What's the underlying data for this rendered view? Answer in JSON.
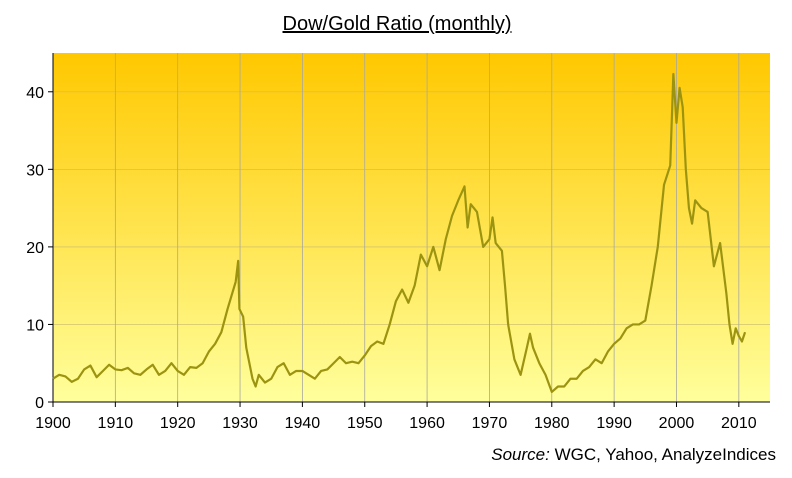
{
  "chart_data": {
    "type": "line",
    "title": "Dow/Gold Ratio (monthly)",
    "source_label": "Source:",
    "source": "WGC, Yahoo, AnalyzeIndices",
    "xlim": [
      1900,
      2015
    ],
    "ylim": [
      0,
      45
    ],
    "xticks": [
      1900,
      1910,
      1920,
      1930,
      1940,
      1950,
      1960,
      1970,
      1980,
      1990,
      2000,
      2010
    ],
    "yticks": [
      0,
      10,
      20,
      30,
      40
    ],
    "grid": true,
    "series": [
      {
        "name": "Dow/Gold Ratio",
        "color": "#9c9410",
        "x": [
          1900,
          1901,
          1902,
          1903,
          1904,
          1905,
          1906,
          1907,
          1908,
          1909,
          1910,
          1911,
          1912,
          1913,
          1914,
          1915,
          1916,
          1917,
          1918,
          1919,
          1920,
          1921,
          1922,
          1923,
          1924,
          1925,
          1926,
          1927,
          1928,
          1929.3,
          1929.7,
          1929.9,
          1930.5,
          1931,
          1932,
          1932.5,
          1933,
          1934,
          1935,
          1936,
          1937,
          1938,
          1939,
          1940,
          1941,
          1942,
          1943,
          1944,
          1945,
          1946,
          1947,
          1948,
          1949,
          1950,
          1951,
          1952,
          1953,
          1954,
          1955,
          1956,
          1957,
          1958,
          1959,
          1960,
          1961,
          1962,
          1963,
          1964,
          1965,
          1966,
          1966.5,
          1967,
          1968,
          1969,
          1970,
          1970.5,
          1971,
          1972,
          1972.5,
          1973,
          1974,
          1975,
          1976,
          1976.5,
          1977,
          1978,
          1979,
          1980,
          1981,
          1982,
          1983,
          1984,
          1985,
          1986,
          1987,
          1988,
          1989,
          1990,
          1991,
          1992,
          1993,
          1994,
          1995,
          1996,
          1997,
          1998,
          1999,
          1999.5,
          2000,
          2000.5,
          2001,
          2001.5,
          2002,
          2002.5,
          2003,
          2004,
          2005,
          2006,
          2006.5,
          2007,
          2008,
          2008.5,
          2009,
          2009.5,
          2010,
          2010.5,
          2011
        ],
        "values": [
          3.0,
          3.5,
          3.3,
          2.6,
          3.0,
          4.2,
          4.7,
          3.2,
          4.0,
          4.8,
          4.2,
          4.1,
          4.4,
          3.7,
          3.5,
          4.2,
          4.8,
          3.5,
          4.0,
          5.0,
          4.0,
          3.5,
          4.5,
          4.4,
          5.0,
          6.5,
          7.5,
          9.0,
          12.0,
          15.5,
          18.2,
          12.0,
          11.0,
          7,
          3,
          2.0,
          3.5,
          2.5,
          3.0,
          4.5,
          5.0,
          3.5,
          4.0,
          4.0,
          3.5,
          3.0,
          4.0,
          4.2,
          5.0,
          5.8,
          5.0,
          5.2,
          5.0,
          6.0,
          7.2,
          7.8,
          7.5,
          10.0,
          13.0,
          14.5,
          12.8,
          15.0,
          19.0,
          17.5,
          20.0,
          17.0,
          21.0,
          24.0,
          26.0,
          27.8,
          22.5,
          25.5,
          24.5,
          20.0,
          21,
          23.8,
          20.5,
          19.5,
          15,
          10,
          5.5,
          3.5,
          7.0,
          8.8,
          7.0,
          5.0,
          3.5,
          1.3,
          2.0,
          2.0,
          3.0,
          3.0,
          4.0,
          4.5,
          5.5,
          5.0,
          6.5,
          7.5,
          8.2,
          9.5,
          10.0,
          10.0,
          10.5,
          15,
          20,
          28,
          30.5,
          42.3,
          36,
          40.5,
          38,
          30,
          25,
          23,
          26,
          25,
          24.5,
          17.5,
          19,
          20.5,
          14,
          10,
          7.5,
          9.5,
          8.5,
          7.8,
          9.0
        ]
      }
    ]
  }
}
